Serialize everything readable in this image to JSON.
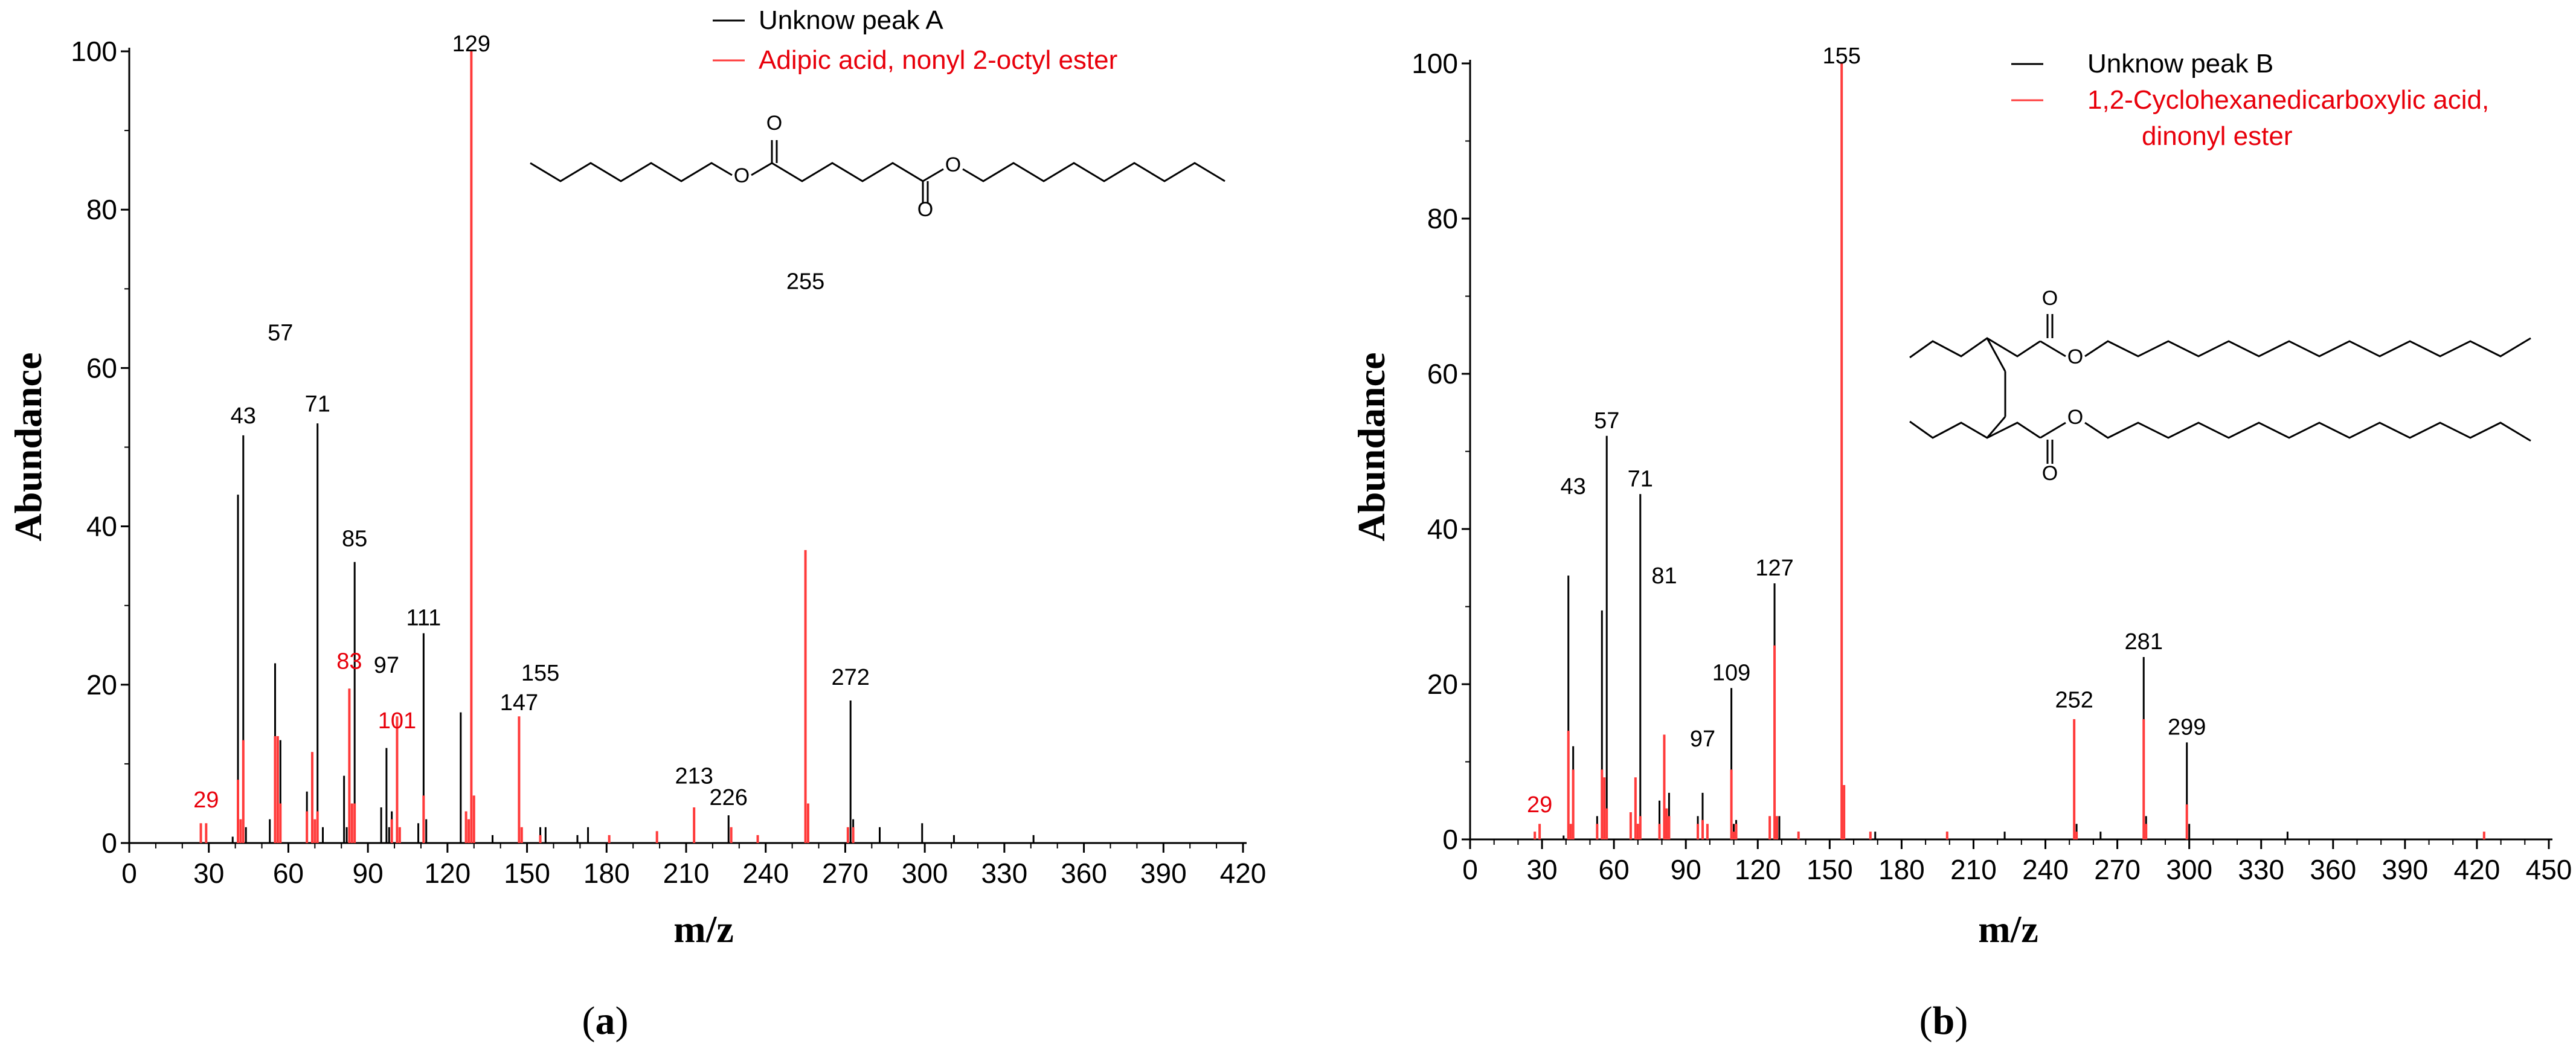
{
  "chart_data": [
    {
      "type": "bar",
      "panel_label": [
        "(",
        "a",
        ")"
      ],
      "xlabel": "m/z",
      "ylabel": "Abundance",
      "xlim": [
        0,
        420
      ],
      "ylim": [
        0,
        100
      ],
      "xticks": [
        0,
        30,
        60,
        90,
        120,
        150,
        180,
        210,
        240,
        270,
        300,
        330,
        360,
        390,
        420
      ],
      "yticks": [
        0,
        20,
        40,
        60,
        80,
        100
      ],
      "legend": {
        "position": "top-right",
        "entries": [
          {
            "label": "Unknow peak A",
            "color": "#000000"
          },
          {
            "label": "Adipic acid, nonyl 2-octyl ester",
            "color": "#ff3b3b",
            "text_color": "#e8000b"
          }
        ]
      },
      "series": [
        {
          "name": "Unknow peak A",
          "color": "#000000",
          "points": [
            [
              27,
              0.5
            ],
            [
              29,
              1
            ],
            [
              39,
              0.8
            ],
            [
              41,
              44
            ],
            [
              43,
              51.5
            ],
            [
              44,
              2
            ],
            [
              53,
              3
            ],
            [
              55,
              22.7
            ],
            [
              56,
              3
            ],
            [
              57,
              13
            ],
            [
              67,
              6.5
            ],
            [
              69,
              7
            ],
            [
              70,
              2
            ],
            [
              71,
              53
            ],
            [
              73,
              2
            ],
            [
              81,
              8.5
            ],
            [
              82,
              2
            ],
            [
              83,
              19.5
            ],
            [
              84,
              4
            ],
            [
              85,
              35.5
            ],
            [
              95,
              4.5
            ],
            [
              97,
              12
            ],
            [
              98,
              2
            ],
            [
              99,
              4
            ],
            [
              101,
              14.5
            ],
            [
              109,
              2.5
            ],
            [
              111,
              26.5
            ],
            [
              112,
              3
            ],
            [
              125,
              16.5
            ],
            [
              127,
              3
            ],
            [
              129,
              4.5
            ],
            [
              137,
              1
            ],
            [
              147,
              4
            ],
            [
              155,
              2
            ],
            [
              157,
              2
            ],
            [
              169,
              1
            ],
            [
              173,
              2
            ],
            [
              199,
              1
            ],
            [
              213,
              1.5
            ],
            [
              226,
              3.5
            ],
            [
              227,
              1
            ],
            [
              255,
              12
            ],
            [
              256,
              2
            ],
            [
              272,
              18
            ],
            [
              273,
              3
            ],
            [
              283,
              2
            ],
            [
              299,
              2.5
            ],
            [
              311,
              1
            ],
            [
              341,
              1
            ]
          ]
        },
        {
          "name": "Adipic acid, nonyl 2-octyl ester",
          "color": "#ff3b3b",
          "points": [
            [
              27,
              2.5
            ],
            [
              29,
              2.5
            ],
            [
              41,
              8
            ],
            [
              42,
              3
            ],
            [
              43,
              13
            ],
            [
              55,
              13.5
            ],
            [
              56,
              13.5
            ],
            [
              57,
              5
            ],
            [
              67,
              4
            ],
            [
              69,
              11.5
            ],
            [
              70,
              3
            ],
            [
              71,
              4
            ],
            [
              83,
              19.5
            ],
            [
              84,
              5
            ],
            [
              85,
              5
            ],
            [
              99,
              3
            ],
            [
              101,
              16
            ],
            [
              102,
              2
            ],
            [
              111,
              6
            ],
            [
              127,
              4
            ],
            [
              128,
              3
            ],
            [
              129,
              100
            ],
            [
              130,
              6
            ],
            [
              147,
              16
            ],
            [
              148,
              2
            ],
            [
              155,
              1
            ],
            [
              181,
              1
            ],
            [
              199,
              1.5
            ],
            [
              213,
              4.5
            ],
            [
              227,
              2
            ],
            [
              237,
              1
            ],
            [
              255,
              37
            ],
            [
              256,
              5
            ],
            [
              271,
              2
            ],
            [
              273,
              2
            ]
          ]
        }
      ],
      "peak_labels": [
        {
          "text": "129",
          "x": 129,
          "y": 100,
          "color": "#000000"
        },
        {
          "text": "255",
          "x": 255,
          "y": 70,
          "color": "#000000"
        },
        {
          "text": "57",
          "x": 57,
          "y": 63.5,
          "color": "#000000"
        },
        {
          "text": "43",
          "x": 43,
          "y": 53,
          "color": "#000000"
        },
        {
          "text": "71",
          "x": 71,
          "y": 54.5,
          "color": "#000000"
        },
        {
          "text": "85",
          "x": 85,
          "y": 37.5,
          "color": "#000000"
        },
        {
          "text": "111",
          "x": 111,
          "y": 27.5,
          "color": "#000000"
        },
        {
          "text": "83",
          "x": 83,
          "y": 22,
          "color": "#e8000b"
        },
        {
          "text": "97",
          "x": 97,
          "y": 21.5,
          "color": "#000000"
        },
        {
          "text": "155",
          "x": 155,
          "y": 20.5,
          "color": "#000000"
        },
        {
          "text": "147",
          "x": 147,
          "y": 16.8,
          "color": "#000000"
        },
        {
          "text": "101",
          "x": 101,
          "y": 14.5,
          "color": "#e8000b"
        },
        {
          "text": "272",
          "x": 272,
          "y": 20,
          "color": "#000000"
        },
        {
          "text": "29",
          "x": 29,
          "y": 4.5,
          "color": "#e8000b"
        },
        {
          "text": "213",
          "x": 213,
          "y": 7.5,
          "color": "#000000"
        },
        {
          "text": "226",
          "x": 226,
          "y": 4.8,
          "color": "#000000"
        }
      ],
      "structure": {
        "atom_labels": [
          "O",
          "O",
          "O",
          "O"
        ]
      }
    },
    {
      "type": "bar",
      "panel_label": [
        "(",
        "b",
        ")"
      ],
      "xlabel": "m/z",
      "ylabel": "Abundance",
      "xlim": [
        0,
        450
      ],
      "ylim": [
        0,
        100
      ],
      "xticks": [
        0,
        30,
        60,
        90,
        120,
        150,
        180,
        210,
        240,
        270,
        300,
        330,
        360,
        390,
        420,
        450
      ],
      "yticks": [
        0,
        20,
        40,
        60,
        80,
        100
      ],
      "legend": {
        "position": "top-right",
        "entries": [
          {
            "label": "Unknow peak B",
            "color": "#000000"
          },
          {
            "label": "1,2-Cyclohexanedicarboxylic acid,",
            "color": "#ff3b3b",
            "text_color": "#e8000b"
          },
          {
            "label": "dinonyl ester",
            "color": "#ff3b3b",
            "text_color": "#e8000b"
          }
        ]
      },
      "series": [
        {
          "name": "Unknow peak B",
          "color": "#000000",
          "points": [
            [
              29,
              0.5
            ],
            [
              39,
              0.5
            ],
            [
              41,
              34
            ],
            [
              43,
              12
            ],
            [
              53,
              3
            ],
            [
              55,
              29.5
            ],
            [
              56,
              5
            ],
            [
              57,
              52
            ],
            [
              67,
              3
            ],
            [
              69,
              5
            ],
            [
              70,
              2
            ],
            [
              71,
              44.5
            ],
            [
              79,
              5
            ],
            [
              81,
              7
            ],
            [
              82,
              3
            ],
            [
              83,
              6
            ],
            [
              95,
              3
            ],
            [
              97,
              6
            ],
            [
              99,
              1
            ],
            [
              109,
              19.5
            ],
            [
              110,
              2
            ],
            [
              111,
              2.5
            ],
            [
              125,
              3
            ],
            [
              127,
              33
            ],
            [
              128,
              3
            ],
            [
              129,
              3
            ],
            [
              137,
              1
            ],
            [
              155,
              9.5
            ],
            [
              156,
              2
            ],
            [
              169,
              1
            ],
            [
              199,
              1
            ],
            [
              223,
              1
            ],
            [
              252,
              12.5
            ],
            [
              253,
              2
            ],
            [
              263,
              1
            ],
            [
              281,
              23.5
            ],
            [
              282,
              3
            ],
            [
              299,
              12.5
            ],
            [
              300,
              2
            ],
            [
              341,
              1
            ],
            [
              423,
              0.5
            ]
          ]
        },
        {
          "name": "1,2-Cyclohexanedicarboxylic acid, dinonyl ester",
          "color": "#ff3b3b",
          "points": [
            [
              27,
              1
            ],
            [
              29,
              2
            ],
            [
              41,
              14
            ],
            [
              42,
              2
            ],
            [
              43,
              9
            ],
            [
              53,
              2
            ],
            [
              55,
              9
            ],
            [
              56,
              8
            ],
            [
              57,
              4
            ],
            [
              67,
              3.5
            ],
            [
              69,
              8
            ],
            [
              70,
              2
            ],
            [
              71,
              3
            ],
            [
              79,
              2
            ],
            [
              81,
              13.5
            ],
            [
              82,
              4
            ],
            [
              83,
              3
            ],
            [
              95,
              2
            ],
            [
              97,
              2.5
            ],
            [
              99,
              2
            ],
            [
              109,
              9
            ],
            [
              110,
              1
            ],
            [
              111,
              2
            ],
            [
              125,
              3
            ],
            [
              127,
              25
            ],
            [
              128,
              3
            ],
            [
              137,
              1
            ],
            [
              155,
              100
            ],
            [
              156,
              7
            ],
            [
              167,
              1
            ],
            [
              199,
              1
            ],
            [
              252,
              15.5
            ],
            [
              253,
              1
            ],
            [
              281,
              15.5
            ],
            [
              282,
              2
            ],
            [
              299,
              4.5
            ],
            [
              423,
              1
            ]
          ]
        }
      ],
      "peak_labels": [
        {
          "text": "155",
          "x": 155,
          "y": 100,
          "color": "#000000"
        },
        {
          "text": "57",
          "x": 57,
          "y": 53,
          "color": "#000000"
        },
        {
          "text": "43",
          "x": 43,
          "y": 44.5,
          "color": "#000000"
        },
        {
          "text": "71",
          "x": 71,
          "y": 45.5,
          "color": "#000000"
        },
        {
          "text": "81",
          "x": 81,
          "y": 33,
          "color": "#000000"
        },
        {
          "text": "127",
          "x": 127,
          "y": 34,
          "color": "#000000"
        },
        {
          "text": "109",
          "x": 109,
          "y": 20.5,
          "color": "#000000"
        },
        {
          "text": "97",
          "x": 97,
          "y": 12,
          "color": "#000000"
        },
        {
          "text": "252",
          "x": 252,
          "y": 17,
          "color": "#000000"
        },
        {
          "text": "281",
          "x": 281,
          "y": 24.5,
          "color": "#000000"
        },
        {
          "text": "299",
          "x": 299,
          "y": 13.5,
          "color": "#000000"
        },
        {
          "text": "29",
          "x": 29,
          "y": 3.5,
          "color": "#e8000b"
        }
      ],
      "structure": {
        "atom_labels": [
          "O",
          "O",
          "O",
          "O"
        ]
      }
    }
  ]
}
